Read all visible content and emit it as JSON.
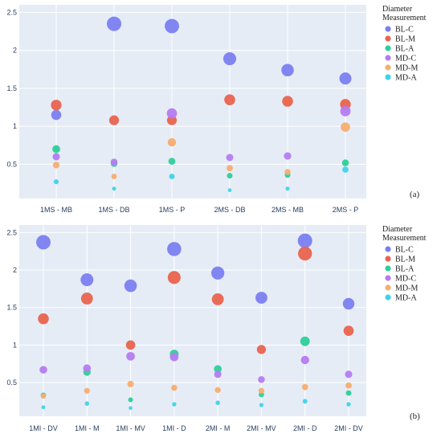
{
  "legend": {
    "title_lines": [
      "Diameter",
      "Measurement"
    ]
  },
  "series_styles": [
    {
      "name": "BL-C",
      "color": "#7b7ff0"
    },
    {
      "name": "BL-M",
      "color": "#e9644e"
    },
    {
      "name": "BL-A",
      "color": "#2ecf9a"
    },
    {
      "name": "MD-C",
      "color": "#b57cf2"
    },
    {
      "name": "MD-M",
      "color": "#f6ae6e"
    },
    {
      "name": "MD-A",
      "color": "#3fd3ea"
    }
  ],
  "chart_data": [
    {
      "type": "scatter",
      "panel_label": "(a)",
      "categories": [
        "1MS - MB",
        "1MS - DB",
        "1MS - P",
        "2MS - DB",
        "2MS - MB",
        "2MS - P"
      ],
      "ylim": [
        0.05,
        2.6
      ],
      "yticks": [
        0.5,
        1,
        1.5,
        2,
        2.5
      ],
      "grid": true,
      "legend": "right",
      "series": [
        {
          "name": "BL-C",
          "values": [
            1.15,
            2.35,
            2.32,
            1.89,
            1.74,
            1.63
          ]
        },
        {
          "name": "BL-M",
          "values": [
            1.28,
            1.08,
            1.08,
            1.35,
            1.33,
            1.29
          ]
        },
        {
          "name": "BL-A",
          "values": [
            0.7,
            0.51,
            0.54,
            0.35,
            0.36,
            0.52
          ]
        },
        {
          "name": "MD-C",
          "values": [
            0.6,
            0.53,
            1.17,
            0.59,
            0.61,
            1.2
          ]
        },
        {
          "name": "MD-M",
          "values": [
            0.49,
            0.34,
            0.79,
            0.45,
            0.4,
            0.99
          ]
        },
        {
          "name": "MD-A",
          "values": [
            0.27,
            0.18,
            0.34,
            0.16,
            0.18,
            0.43
          ]
        }
      ]
    },
    {
      "type": "scatter",
      "panel_label": "(b)",
      "categories": [
        "1MI - DV",
        "1MI - M",
        "1MI - MV",
        "1MI - D",
        "2MI - M",
        "2MI - MV",
        "2MI - D",
        "2MI - DV"
      ],
      "ylim": [
        0.05,
        2.6
      ],
      "yticks": [
        0.5,
        1,
        1.5,
        2,
        2.5
      ],
      "grid": true,
      "legend": "right",
      "series": [
        {
          "name": "BL-C",
          "values": [
            2.37,
            1.87,
            1.79,
            2.28,
            1.96,
            1.63,
            2.39,
            1.55
          ]
        },
        {
          "name": "BL-M",
          "values": [
            1.35,
            1.62,
            1.0,
            1.9,
            1.61,
            0.94,
            2.22,
            1.19
          ]
        },
        {
          "name": "BL-A",
          "values": [
            0.33,
            0.64,
            0.27,
            0.88,
            0.68,
            0.34,
            1.05,
            0.36
          ]
        },
        {
          "name": "MD-C",
          "values": [
            0.67,
            0.69,
            0.85,
            0.84,
            0.61,
            0.54,
            0.8,
            0.61
          ]
        },
        {
          "name": "MD-M",
          "values": [
            0.32,
            0.39,
            0.48,
            0.43,
            0.4,
            0.39,
            0.44,
            0.46
          ]
        },
        {
          "name": "MD-A",
          "values": [
            0.17,
            0.22,
            0.16,
            0.21,
            0.23,
            0.2,
            0.25,
            0.21
          ]
        }
      ]
    }
  ]
}
